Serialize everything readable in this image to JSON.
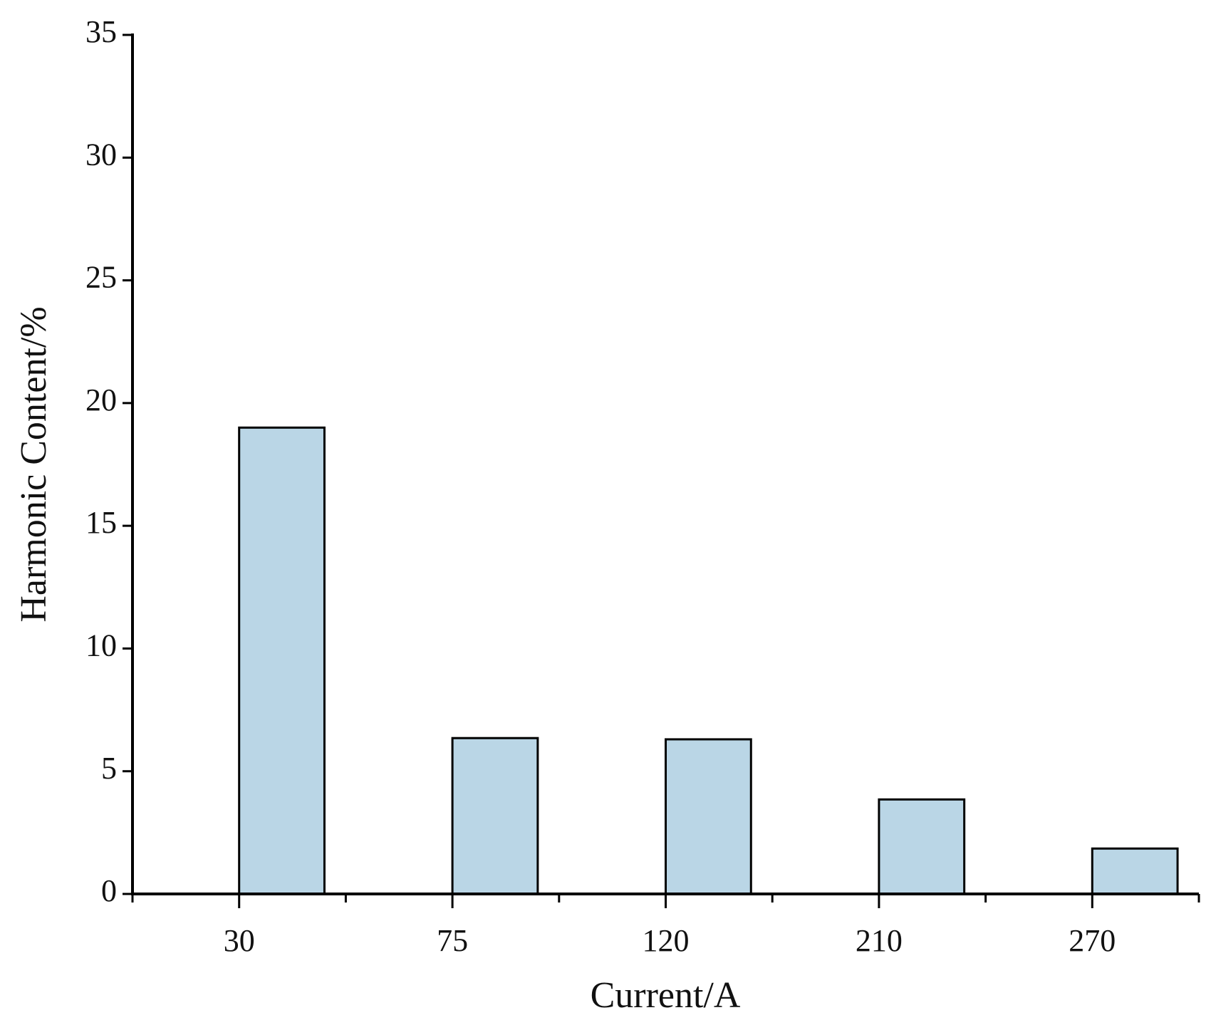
{
  "chart_data": {
    "type": "bar",
    "x_label": "Current/A",
    "y_label": "Harmonic Content/%",
    "categories": [
      "30",
      "75",
      "120",
      "210",
      "270"
    ],
    "values": [
      19.0,
      6.35,
      6.3,
      3.85,
      1.85
    ],
    "color": "#bad6e6",
    "ylim": [
      0,
      35
    ],
    "yticks": [
      0,
      5,
      10,
      15,
      20,
      25,
      30,
      35
    ],
    "grid": false
  }
}
